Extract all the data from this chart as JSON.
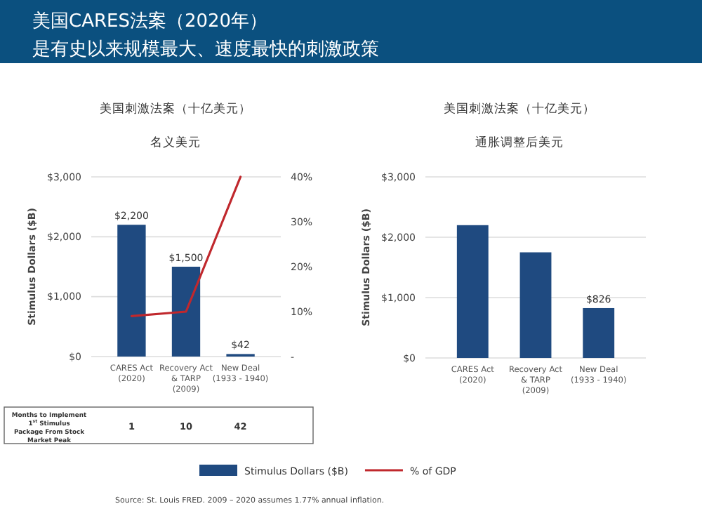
{
  "chart_data": [
    {
      "type": "other",
      "title": "美国CARES法案（2020年）",
      "subtitle": "是有史以来规模最大、速度最快的刺激政策",
      "annotations": [
        "Source: St. Louis FRED. 2009 – 2020 assumes 1.77% annual inflation."
      ]
    },
    {
      "type": "bar",
      "title": "美国刺激法案（十亿美元）",
      "subtitle": "名义美元",
      "ylabel": "Stimulus Dollars ($B)",
      "categories": [
        "CARES Act (2020)",
        "Recovery Act & TARP (2009)",
        "New Deal (1933 - 1940)"
      ],
      "series": [
        {
          "name": "Stimulus Dollars ($B)",
          "color": "#1f4a80",
          "values": [
            2200,
            1500,
            42
          ],
          "value_labels": [
            "$2,200",
            "$1,500",
            "$42"
          ]
        },
        {
          "name": "% of GDP",
          "type": "line",
          "axis": "y2",
          "color": "#c0282d",
          "values": [
            9,
            10,
            40
          ]
        }
      ],
      "ylim": [
        0,
        3000
      ],
      "yticks": [
        {
          "value": 0,
          "label": "$0"
        },
        {
          "value": 1000,
          "label": "$1,000"
        },
        {
          "value": 2000,
          "label": "$2,000"
        },
        {
          "value": 3000,
          "label": "$3,000"
        }
      ],
      "y2lim": [
        0,
        40
      ],
      "y2ticks": [
        {
          "value": 0,
          "label": "-"
        },
        {
          "value": 10,
          "label": "10%"
        },
        {
          "value": 20,
          "label": "20%"
        },
        {
          "value": 30,
          "label": "30%"
        },
        {
          "value": 40,
          "label": "40%"
        }
      ],
      "grid": "y",
      "legend": "bottom",
      "annotations": [
        "Months to Implement 1$^{st}$ Stimulus Package From Stock Market Peak",
        "1",
        "10",
        "42"
      ]
    },
    {
      "type": "bar",
      "title": "美国刺激法案（十亿美元）",
      "subtitle": "通胀调整后美元",
      "ylabel": "Stimulus Dollars ($B)",
      "categories": [
        "CARES Act (2020)",
        "Recovery Act & TARP (2009)",
        "New Deal (1933 - 1940)"
      ],
      "series": [
        {
          "color": "#1f4a80",
          "values": [
            2200,
            1750,
            826
          ],
          "value_labels": [
            null,
            null,
            "$826"
          ]
        }
      ],
      "ylim": [
        0,
        3000
      ],
      "yticks": [
        {
          "value": 0,
          "label": "$0"
        },
        {
          "value": 1000,
          "label": "$1,000"
        },
        {
          "value": 2000,
          "label": "$2,000"
        },
        {
          "value": 3000,
          "label": "$3,000"
        }
      ],
      "grid": "y"
    }
  ]
}
